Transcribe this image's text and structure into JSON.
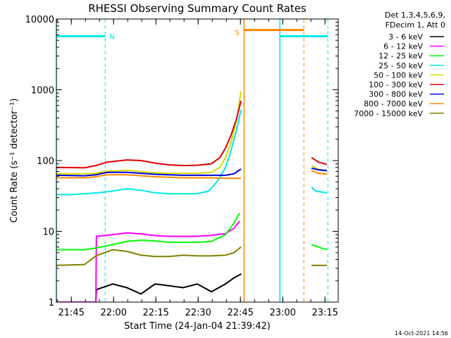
{
  "chart_data": {
    "type": "line",
    "title": "RHESSI Observing Summary Count Rates",
    "xlabel": "Start Time (24-Jan-04 21:39:42)",
    "ylabel": "Count Rate (s⁻¹ detector⁻¹)",
    "yscale": "log",
    "ylim": [
      1,
      10000
    ],
    "xlim_minutes_after_start": [
      0,
      100
    ],
    "x_tick_labels": [
      "21:45",
      "22:00",
      "22:15",
      "22:30",
      "22:45",
      "23:00",
      "23:15"
    ],
    "x_tick_minutes": [
      5.3,
      20.3,
      35.3,
      50.3,
      65.3,
      80.3,
      95.3
    ],
    "y_tick_labels": [
      "1",
      "10",
      "100",
      "1000",
      "10000"
    ],
    "y_tick_values": [
      1,
      10,
      100,
      1000,
      10000
    ],
    "legend_placement": "right",
    "legend_header": [
      "Det 1,3,4,5,6,9,",
      "FDecim 1, Att 0"
    ],
    "annotations": [
      {
        "label": "N",
        "meaning": "night interval"
      },
      {
        "label": "S",
        "meaning": "SAA interval"
      }
    ],
    "flags": [
      {
        "name": "night",
        "color": "#00e8e8",
        "intervals_minutes": [
          [
            0,
            17.3
          ],
          [
            79.3,
            96.3
          ]
        ],
        "level": 5700
      },
      {
        "name": "saa",
        "color": "#ff8800",
        "intervals_minutes": [
          [
            66.6,
            87.8
          ]
        ],
        "level": 7000
      }
    ],
    "data_gap_minutes": [
      65.6,
      90.0
    ],
    "series": [
      {
        "name": "3 - 6 keV",
        "color": "#000000",
        "points": [
          [
            0,
            1
          ],
          [
            14,
            1
          ],
          [
            14.2,
            1.5
          ],
          [
            20,
            1.8
          ],
          [
            25,
            1.6
          ],
          [
            30,
            1.3
          ],
          [
            35,
            1.8
          ],
          [
            40,
            1.7
          ],
          [
            45,
            1.6
          ],
          [
            50,
            1.8
          ],
          [
            55,
            1.4
          ],
          [
            60,
            1.8
          ],
          [
            63,
            2.2
          ],
          [
            65.6,
            2.5
          ]
        ],
        "points_after_gap": []
      },
      {
        "name": "6 - 12 keV",
        "color": "#ff00ff",
        "points": [
          [
            0,
            1
          ],
          [
            14,
            1
          ],
          [
            14.2,
            8.5
          ],
          [
            20,
            9
          ],
          [
            25,
            9.5
          ],
          [
            30,
            9.2
          ],
          [
            35,
            8.7
          ],
          [
            40,
            8.5
          ],
          [
            45,
            8.5
          ],
          [
            50,
            8.5
          ],
          [
            55,
            8.8
          ],
          [
            60,
            9.3
          ],
          [
            63,
            11
          ],
          [
            65,
            14
          ]
        ],
        "points_after_gap": []
      },
      {
        "name": "12 - 25 keV",
        "color": "#00ff00",
        "points": [
          [
            0,
            5.5
          ],
          [
            10,
            5.5
          ],
          [
            14,
            5.8
          ],
          [
            20,
            6.5
          ],
          [
            25,
            7.2
          ],
          [
            30,
            7.5
          ],
          [
            35,
            7.3
          ],
          [
            40,
            7
          ],
          [
            45,
            7
          ],
          [
            50,
            7
          ],
          [
            55,
            7.2
          ],
          [
            60,
            9
          ],
          [
            63,
            13
          ],
          [
            65,
            18
          ]
        ],
        "points_after_gap": [
          [
            90.5,
            6.5
          ],
          [
            94,
            5.8
          ],
          [
            96,
            5.5
          ]
        ]
      },
      {
        "name": "25 - 50 keV",
        "color": "#00e8e8",
        "points": [
          [
            0,
            33
          ],
          [
            5,
            33
          ],
          [
            10,
            34
          ],
          [
            15,
            35
          ],
          [
            20,
            37
          ],
          [
            25,
            40
          ],
          [
            30,
            38
          ],
          [
            35,
            35
          ],
          [
            40,
            34
          ],
          [
            45,
            34
          ],
          [
            50,
            34
          ],
          [
            54,
            37
          ],
          [
            56,
            45
          ],
          [
            58,
            58
          ],
          [
            60,
            80
          ],
          [
            62,
            140
          ],
          [
            64,
            280
          ],
          [
            65.5,
            520
          ]
        ],
        "points_after_gap": [
          [
            90.5,
            42
          ],
          [
            92,
            37
          ],
          [
            96,
            35
          ]
        ]
      },
      {
        "name": "50 - 100 keV",
        "color": "#d8d800",
        "points": [
          [
            0,
            65
          ],
          [
            10,
            65
          ],
          [
            14,
            66
          ],
          [
            17,
            70
          ],
          [
            25,
            73
          ],
          [
            30,
            70
          ],
          [
            35,
            67
          ],
          [
            40,
            66
          ],
          [
            45,
            66
          ],
          [
            50,
            66
          ],
          [
            55,
            68
          ],
          [
            58,
            80
          ],
          [
            60,
            110
          ],
          [
            62,
            180
          ],
          [
            64,
            380
          ],
          [
            65.5,
            950
          ]
        ],
        "points_after_gap": [
          [
            90.5,
            85
          ],
          [
            93,
            75
          ],
          [
            96,
            72
          ]
        ]
      },
      {
        "name": "100 - 300 keV",
        "color": "#e00000",
        "points": [
          [
            0,
            80
          ],
          [
            10,
            79
          ],
          [
            14,
            85
          ],
          [
            18,
            95
          ],
          [
            25,
            102
          ],
          [
            30,
            100
          ],
          [
            35,
            92
          ],
          [
            40,
            87
          ],
          [
            45,
            85
          ],
          [
            50,
            86
          ],
          [
            55,
            90
          ],
          [
            58,
            110
          ],
          [
            60,
            150
          ],
          [
            62,
            230
          ],
          [
            64,
            400
          ],
          [
            65.5,
            700
          ]
        ],
        "points_after_gap": [
          [
            90.5,
            110
          ],
          [
            93,
            95
          ],
          [
            96,
            88
          ]
        ]
      },
      {
        "name": "300 - 800 keV",
        "color": "#0000e0",
        "points": [
          [
            0,
            62
          ],
          [
            10,
            61
          ],
          [
            14,
            63
          ],
          [
            18,
            68
          ],
          [
            25,
            68
          ],
          [
            30,
            66
          ],
          [
            35,
            64
          ],
          [
            40,
            63
          ],
          [
            45,
            62
          ],
          [
            50,
            62
          ],
          [
            55,
            62
          ],
          [
            60,
            62
          ],
          [
            63,
            65
          ],
          [
            65.5,
            76
          ]
        ],
        "points_after_gap": [
          [
            90.5,
            78
          ],
          [
            93,
            74
          ],
          [
            96,
            72
          ]
        ]
      },
      {
        "name": "800 - 7000 keV",
        "color": "#ff8800",
        "points": [
          [
            0,
            57
          ],
          [
            10,
            57
          ],
          [
            14,
            59
          ],
          [
            18,
            63
          ],
          [
            25,
            63
          ],
          [
            30,
            61
          ],
          [
            35,
            59
          ],
          [
            40,
            58
          ],
          [
            45,
            57
          ],
          [
            50,
            57
          ],
          [
            55,
            57
          ],
          [
            60,
            56
          ],
          [
            63,
            56
          ],
          [
            65.5,
            56
          ]
        ],
        "points_after_gap": [
          [
            90.5,
            72
          ],
          [
            93,
            66
          ],
          [
            96,
            64
          ]
        ]
      },
      {
        "name": "7000 - 15000 keV",
        "color": "#808000",
        "points": [
          [
            0,
            3.3
          ],
          [
            10,
            3.4
          ],
          [
            14,
            4.5
          ],
          [
            20,
            5.5
          ],
          [
            25,
            5.2
          ],
          [
            30,
            4.6
          ],
          [
            35,
            4.4
          ],
          [
            40,
            4.4
          ],
          [
            45,
            4.6
          ],
          [
            50,
            4.5
          ],
          [
            55,
            4.5
          ],
          [
            60,
            4.6
          ],
          [
            63,
            5
          ],
          [
            65.5,
            6
          ]
        ],
        "points_after_gap": [
          [
            90.5,
            3.3
          ],
          [
            94,
            3.3
          ],
          [
            96,
            3.3
          ]
        ]
      }
    ]
  },
  "footer": {
    "date_stamp": "14-Oct-2021 14:56"
  }
}
